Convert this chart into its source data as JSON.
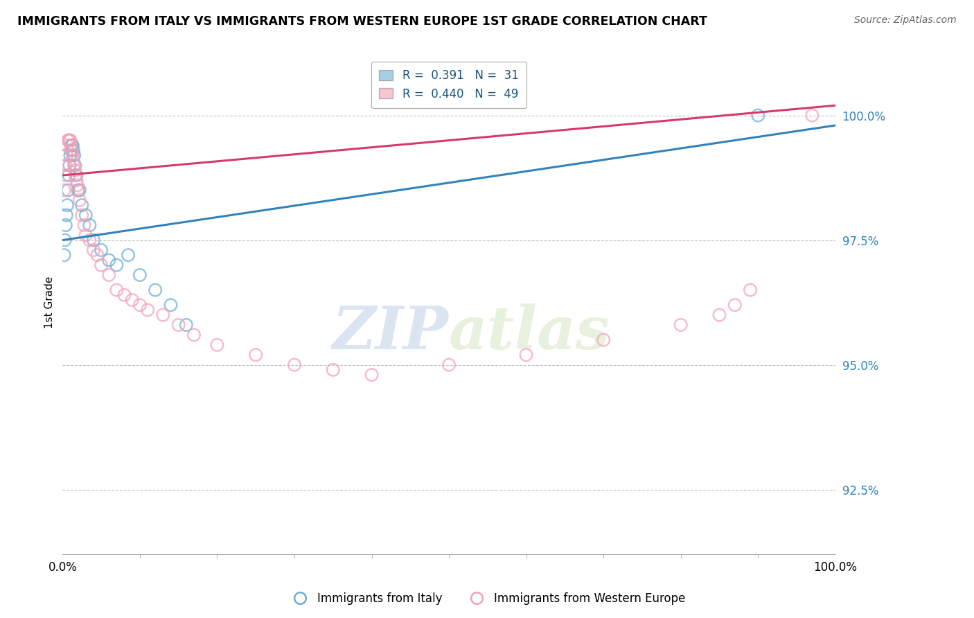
{
  "title": "IMMIGRANTS FROM ITALY VS IMMIGRANTS FROM WESTERN EUROPE 1ST GRADE CORRELATION CHART",
  "source": "Source: ZipAtlas.com",
  "ylabel": "1st Grade",
  "xlim": [
    0.0,
    100.0
  ],
  "ylim": [
    91.2,
    101.3
  ],
  "yticks": [
    92.5,
    95.0,
    97.5,
    100.0
  ],
  "ytick_labels": [
    "92.5%",
    "95.0%",
    "97.5%",
    "100.0%"
  ],
  "xtick_labels": [
    "0.0%",
    "100.0%"
  ],
  "legend_blue": "R =  0.391   N =  31",
  "legend_pink": "R =  0.440   N =  49",
  "series_blue_label": "Immigrants from Italy",
  "series_pink_label": "Immigrants from Western Europe",
  "blue_color": "#6baed6",
  "pink_color": "#f4a0b5",
  "blue_line_color": "#3182bd",
  "pink_line_color": "#d63a6a",
  "watermark_zip": "ZIP",
  "watermark_atlas": "atlas",
  "blue_x": [
    0.2,
    0.3,
    0.4,
    0.5,
    0.6,
    0.7,
    0.8,
    0.9,
    1.0,
    1.1,
    1.2,
    1.3,
    1.4,
    1.5,
    1.6,
    1.8,
    2.0,
    2.2,
    2.5,
    3.0,
    3.5,
    4.0,
    5.0,
    6.0,
    7.0,
    8.5,
    10.0,
    12.0,
    14.0,
    16.0,
    90.0
  ],
  "blue_y": [
    97.2,
    97.5,
    97.8,
    98.0,
    98.2,
    98.5,
    98.8,
    99.0,
    99.2,
    99.3,
    99.4,
    99.4,
    99.3,
    99.2,
    99.0,
    98.8,
    98.5,
    98.5,
    98.2,
    98.0,
    97.8,
    97.5,
    97.3,
    97.1,
    97.0,
    97.2,
    96.8,
    96.5,
    96.2,
    95.8,
    100.0
  ],
  "pink_x": [
    0.2,
    0.3,
    0.4,
    0.5,
    0.6,
    0.7,
    0.8,
    0.9,
    1.0,
    1.1,
    1.2,
    1.3,
    1.4,
    1.5,
    1.6,
    1.7,
    1.8,
    1.9,
    2.0,
    2.2,
    2.5,
    2.8,
    3.0,
    3.5,
    4.0,
    4.5,
    5.0,
    6.0,
    7.0,
    8.0,
    9.0,
    10.0,
    11.0,
    13.0,
    15.0,
    17.0,
    20.0,
    25.0,
    30.0,
    35.0,
    40.0,
    50.0,
    60.0,
    70.0,
    80.0,
    85.0,
    87.0,
    89.0,
    97.0
  ],
  "pink_y": [
    98.5,
    98.8,
    99.0,
    99.2,
    99.4,
    99.5,
    99.5,
    99.5,
    99.5,
    99.4,
    99.3,
    99.2,
    99.1,
    99.0,
    98.9,
    98.8,
    98.7,
    98.6,
    98.5,
    98.3,
    98.0,
    97.8,
    97.6,
    97.5,
    97.3,
    97.2,
    97.0,
    96.8,
    96.5,
    96.4,
    96.3,
    96.2,
    96.1,
    96.0,
    95.8,
    95.6,
    95.4,
    95.2,
    95.0,
    94.9,
    94.8,
    95.0,
    95.2,
    95.5,
    95.8,
    96.0,
    96.2,
    96.5,
    100.0
  ],
  "blue_trend_x0": 0.0,
  "blue_trend_y0": 97.5,
  "blue_trend_x1": 100.0,
  "blue_trend_y1": 99.8,
  "pink_trend_x0": 0.0,
  "pink_trend_y0": 98.8,
  "pink_trend_x1": 100.0,
  "pink_trend_y1": 100.2
}
